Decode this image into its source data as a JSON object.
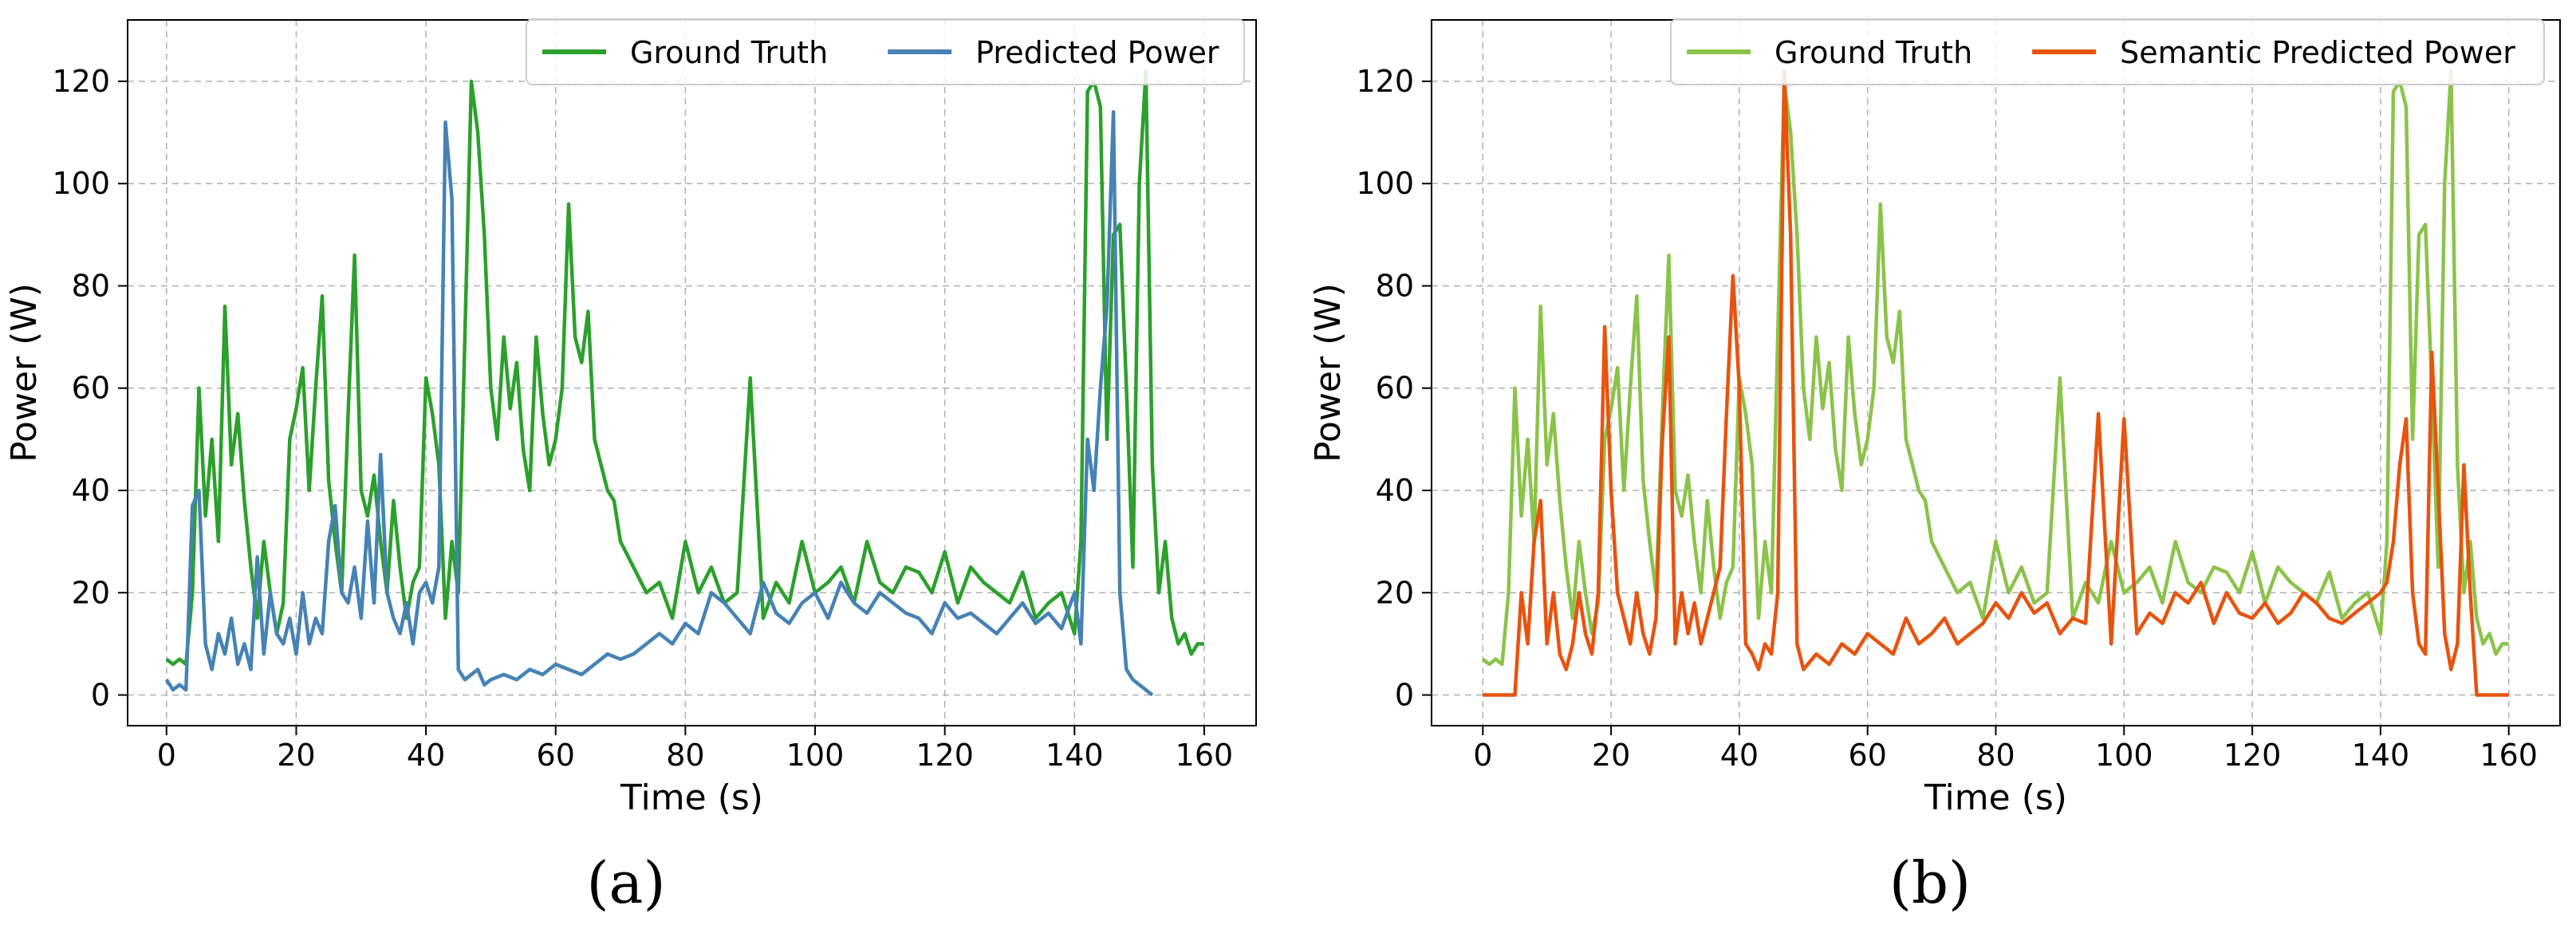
{
  "colors": {
    "gt_a": "#2ca02c",
    "pred_a": "#4682b4",
    "gt_b": "#8bc34a",
    "pred_b": "#e8530e",
    "grid": "#b0b0b0"
  },
  "chart_data": [
    {
      "type": "line",
      "caption": "(a)",
      "xlabel": "Time (s)",
      "ylabel": "Power (W)",
      "xlim": [
        -6,
        168
      ],
      "ylim": [
        -6,
        132
      ],
      "xticks": [
        0,
        20,
        40,
        60,
        80,
        100,
        120,
        140,
        160
      ],
      "yticks": [
        0,
        20,
        40,
        60,
        80,
        100,
        120
      ],
      "grid": true,
      "legend_position": "top-right",
      "series": [
        {
          "name": "Ground Truth",
          "color": "#2ca02c",
          "x": [
            0,
            1,
            2,
            3,
            4,
            5,
            6,
            7,
            8,
            9,
            10,
            11,
            12,
            13,
            14,
            15,
            16,
            17,
            18,
            19,
            20,
            21,
            22,
            23,
            24,
            25,
            26,
            27,
            28,
            29,
            30,
            31,
            32,
            33,
            34,
            35,
            36,
            37,
            38,
            39,
            40,
            41,
            42,
            43,
            44,
            45,
            46,
            47,
            48,
            49,
            50,
            51,
            52,
            53,
            54,
            55,
            56,
            57,
            58,
            59,
            60,
            61,
            62,
            63,
            64,
            65,
            66,
            67,
            68,
            69,
            70,
            72,
            74,
            76,
            78,
            80,
            82,
            84,
            86,
            88,
            90,
            92,
            94,
            96,
            98,
            100,
            102,
            104,
            106,
            108,
            110,
            112,
            114,
            116,
            118,
            120,
            122,
            124,
            126,
            128,
            130,
            132,
            134,
            136,
            138,
            140,
            141,
            142,
            143,
            144,
            145,
            146,
            147,
            148,
            149,
            150,
            151,
            152,
            153,
            154,
            155,
            156,
            157,
            158,
            159,
            160
          ],
          "y": [
            7,
            6,
            7,
            6,
            20,
            60,
            35,
            50,
            30,
            76,
            45,
            55,
            38,
            25,
            15,
            30,
            20,
            12,
            18,
            50,
            56,
            64,
            40,
            60,
            78,
            42,
            30,
            20,
            55,
            86,
            40,
            35,
            43,
            30,
            20,
            38,
            25,
            15,
            22,
            25,
            62,
            55,
            45,
            15,
            30,
            20,
            70,
            120,
            110,
            90,
            60,
            50,
            70,
            56,
            65,
            48,
            40,
            70,
            55,
            45,
            50,
            60,
            96,
            70,
            65,
            75,
            50,
            45,
            40,
            38,
            30,
            25,
            20,
            22,
            15,
            30,
            20,
            25,
            18,
            20,
            62,
            15,
            22,
            18,
            30,
            20,
            22,
            25,
            18,
            30,
            22,
            20,
            25,
            24,
            20,
            28,
            18,
            25,
            22,
            20,
            18,
            24,
            15,
            18,
            20,
            12,
            30,
            118,
            120,
            115,
            50,
            90,
            92,
            60,
            25,
            100,
            122,
            45,
            20,
            30,
            15,
            10,
            12,
            8,
            10,
            10
          ]
        },
        {
          "name": "Predicted Power",
          "color": "#4682b4",
          "x": [
            0,
            1,
            2,
            3,
            4,
            5,
            6,
            7,
            8,
            9,
            10,
            11,
            12,
            13,
            14,
            15,
            16,
            17,
            18,
            19,
            20,
            21,
            22,
            23,
            24,
            25,
            26,
            27,
            28,
            29,
            30,
            31,
            32,
            33,
            34,
            35,
            36,
            37,
            38,
            39,
            40,
            41,
            42,
            43,
            44,
            45,
            46,
            47,
            48,
            49,
            50,
            52,
            54,
            56,
            58,
            60,
            62,
            64,
            66,
            68,
            70,
            72,
            74,
            76,
            78,
            80,
            82,
            84,
            86,
            88,
            90,
            92,
            94,
            96,
            98,
            100,
            102,
            104,
            106,
            108,
            110,
            112,
            114,
            116,
            118,
            120,
            122,
            124,
            126,
            128,
            130,
            132,
            134,
            136,
            138,
            140,
            141,
            142,
            143,
            144,
            145,
            146,
            147,
            148,
            149,
            150,
            151,
            152
          ],
          "y": [
            3,
            1,
            2,
            1,
            37,
            40,
            10,
            5,
            12,
            8,
            15,
            6,
            10,
            5,
            27,
            8,
            20,
            12,
            10,
            15,
            8,
            20,
            10,
            15,
            12,
            30,
            37,
            20,
            18,
            25,
            15,
            34,
            18,
            47,
            20,
            15,
            12,
            18,
            10,
            20,
            22,
            18,
            25,
            112,
            97,
            5,
            3,
            4,
            5,
            2,
            3,
            4,
            3,
            5,
            4,
            6,
            5,
            4,
            6,
            8,
            7,
            8,
            10,
            12,
            10,
            14,
            12,
            20,
            18,
            15,
            12,
            22,
            16,
            14,
            18,
            20,
            15,
            22,
            18,
            16,
            20,
            18,
            16,
            15,
            12,
            18,
            15,
            16,
            14,
            12,
            15,
            18,
            14,
            16,
            13,
            20,
            10,
            50,
            40,
            60,
            76,
            114,
            20,
            5,
            3,
            2,
            1,
            0
          ]
        }
      ]
    },
    {
      "type": "line",
      "caption": "(b)",
      "xlabel": "Time (s)",
      "ylabel": "Power (W)",
      "xlim": [
        -8,
        168
      ],
      "ylim": [
        -6,
        132
      ],
      "xticks": [
        0,
        20,
        40,
        60,
        80,
        100,
        120,
        140,
        160
      ],
      "yticks": [
        0,
        20,
        40,
        60,
        80,
        100,
        120
      ],
      "grid": true,
      "legend_position": "top-right",
      "series": [
        {
          "name": "Ground Truth",
          "color": "#8bc34a",
          "x": [
            0,
            1,
            2,
            3,
            4,
            5,
            6,
            7,
            8,
            9,
            10,
            11,
            12,
            13,
            14,
            15,
            16,
            17,
            18,
            19,
            20,
            21,
            22,
            23,
            24,
            25,
            26,
            27,
            28,
            29,
            30,
            31,
            32,
            33,
            34,
            35,
            36,
            37,
            38,
            39,
            40,
            41,
            42,
            43,
            44,
            45,
            46,
            47,
            48,
            49,
            50,
            51,
            52,
            53,
            54,
            55,
            56,
            57,
            58,
            59,
            60,
            61,
            62,
            63,
            64,
            65,
            66,
            67,
            68,
            69,
            70,
            72,
            74,
            76,
            78,
            80,
            82,
            84,
            86,
            88,
            90,
            92,
            94,
            96,
            98,
            100,
            102,
            104,
            106,
            108,
            110,
            112,
            114,
            116,
            118,
            120,
            122,
            124,
            126,
            128,
            130,
            132,
            134,
            136,
            138,
            140,
            141,
            142,
            143,
            144,
            145,
            146,
            147,
            148,
            149,
            150,
            151,
            152,
            153,
            154,
            155,
            156,
            157,
            158,
            159,
            160
          ],
          "y": [
            7,
            6,
            7,
            6,
            20,
            60,
            35,
            50,
            30,
            76,
            45,
            55,
            38,
            25,
            15,
            30,
            20,
            12,
            18,
            50,
            56,
            64,
            40,
            60,
            78,
            42,
            30,
            20,
            55,
            86,
            40,
            35,
            43,
            30,
            20,
            38,
            25,
            15,
            22,
            25,
            62,
            55,
            45,
            15,
            30,
            20,
            70,
            120,
            110,
            90,
            60,
            50,
            70,
            56,
            65,
            48,
            40,
            70,
            55,
            45,
            50,
            60,
            96,
            70,
            65,
            75,
            50,
            45,
            40,
            38,
            30,
            25,
            20,
            22,
            15,
            30,
            20,
            25,
            18,
            20,
            62,
            15,
            22,
            18,
            30,
            20,
            22,
            25,
            18,
            30,
            22,
            20,
            25,
            24,
            20,
            28,
            18,
            25,
            22,
            20,
            18,
            24,
            15,
            18,
            20,
            12,
            30,
            118,
            120,
            115,
            50,
            90,
            92,
            60,
            25,
            100,
            122,
            45,
            20,
            30,
            15,
            10,
            12,
            8,
            10,
            10
          ]
        },
        {
          "name": "Semantic Predicted Power",
          "color": "#e8530e",
          "x": [
            0,
            1,
            2,
            3,
            4,
            5,
            6,
            7,
            8,
            9,
            10,
            11,
            12,
            13,
            14,
            15,
            16,
            17,
            18,
            19,
            20,
            21,
            22,
            23,
            24,
            25,
            26,
            27,
            28,
            29,
            30,
            31,
            32,
            33,
            34,
            35,
            36,
            37,
            38,
            39,
            40,
            41,
            42,
            43,
            44,
            45,
            46,
            47,
            48,
            49,
            50,
            52,
            54,
            56,
            58,
            60,
            62,
            64,
            66,
            68,
            70,
            72,
            74,
            76,
            78,
            80,
            82,
            84,
            86,
            88,
            90,
            92,
            94,
            96,
            98,
            100,
            102,
            104,
            106,
            108,
            110,
            112,
            114,
            116,
            118,
            120,
            122,
            124,
            126,
            128,
            130,
            132,
            134,
            136,
            138,
            140,
            141,
            142,
            143,
            144,
            145,
            146,
            147,
            148,
            149,
            150,
            151,
            152,
            153,
            154,
            155,
            156,
            157,
            158,
            159,
            160
          ],
          "y": [
            0,
            0,
            0,
            0,
            0,
            0,
            20,
            10,
            30,
            38,
            10,
            20,
            8,
            5,
            10,
            20,
            12,
            8,
            20,
            72,
            40,
            20,
            15,
            10,
            20,
            12,
            8,
            15,
            50,
            70,
            10,
            20,
            12,
            18,
            10,
            15,
            20,
            25,
            55,
            82,
            60,
            10,
            8,
            5,
            10,
            8,
            20,
            122,
            90,
            10,
            5,
            8,
            6,
            10,
            8,
            12,
            10,
            8,
            15,
            10,
            12,
            15,
            10,
            12,
            14,
            18,
            15,
            20,
            16,
            18,
            12,
            15,
            14,
            55,
            10,
            54,
            12,
            16,
            14,
            20,
            18,
            22,
            14,
            20,
            16,
            15,
            18,
            14,
            16,
            20,
            18,
            15,
            14,
            16,
            18,
            20,
            22,
            30,
            45,
            54,
            20,
            10,
            8,
            67,
            40,
            12,
            5,
            10,
            45,
            20,
            0,
            0,
            0,
            0,
            0,
            0
          ]
        }
      ]
    }
  ]
}
